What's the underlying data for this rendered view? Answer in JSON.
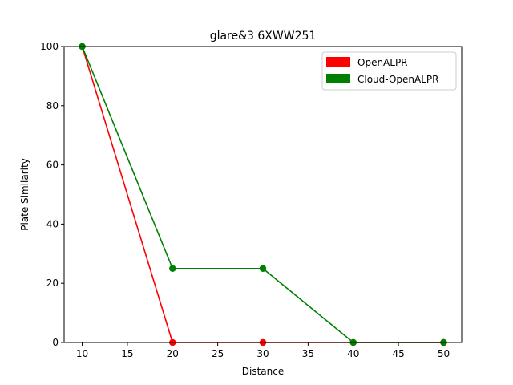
{
  "chart_data": {
    "type": "line",
    "title": "glare&3 6XWW251",
    "xlabel": "Distance",
    "ylabel": "Plate Similarity",
    "xlim": [
      8,
      52
    ],
    "ylim": [
      0,
      100
    ],
    "xticks": [
      10,
      15,
      20,
      25,
      30,
      35,
      40,
      45,
      50
    ],
    "yticks": [
      0,
      20,
      40,
      60,
      80,
      100
    ],
    "grid": false,
    "legend_position": "top-right",
    "series": [
      {
        "name": "OpenALPR",
        "color": "#ff0000",
        "x": [
          10,
          20,
          30,
          40,
          50
        ],
        "y": [
          100,
          0,
          0,
          0,
          0
        ]
      },
      {
        "name": "Cloud-OpenALPR",
        "color": "#008000",
        "x": [
          10,
          20,
          30,
          40,
          50
        ],
        "y": [
          100,
          25,
          25,
          0,
          0
        ]
      }
    ]
  }
}
